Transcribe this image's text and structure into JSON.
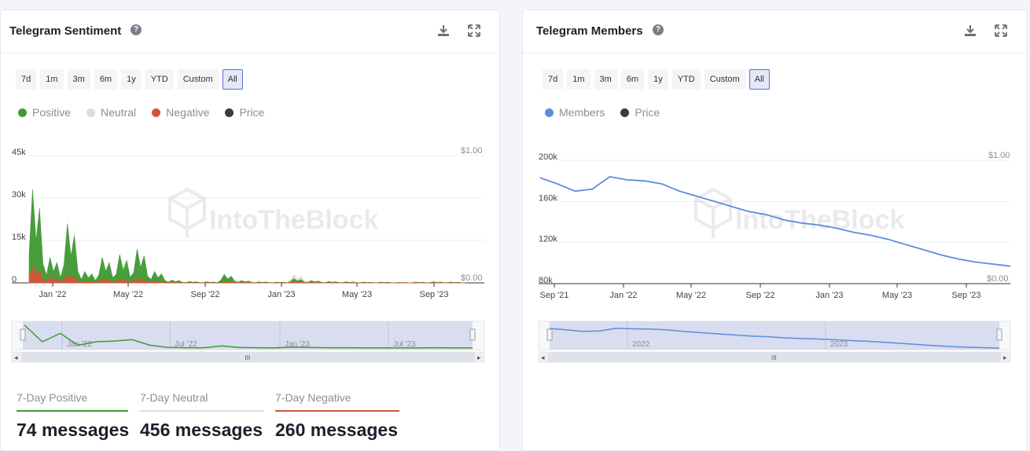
{
  "sentiment": {
    "title": "Telegram Sentiment",
    "ranges": [
      "7d",
      "1m",
      "3m",
      "6m",
      "1y",
      "YTD",
      "Custom",
      "All"
    ],
    "active_range": "All",
    "legend": [
      {
        "label": "Positive",
        "color": "#3f9a32"
      },
      {
        "label": "Neutral",
        "color": "#dcdcdc"
      },
      {
        "label": "Negative",
        "color": "#d4553a"
      },
      {
        "label": "Price",
        "color": "#3b3b3b"
      }
    ],
    "stats": [
      {
        "label": "7-Day Positive",
        "value": "74 messages",
        "color": "#3f9a32"
      },
      {
        "label": "7-Day Neutral",
        "value": "456 messages",
        "color": "#dcdcdc"
      },
      {
        "label": "7-Day Negative",
        "value": "260 messages",
        "color": "#d4553a"
      }
    ],
    "watermark": "IntoTheBlock"
  },
  "members": {
    "title": "Telegram Members",
    "ranges": [
      "7d",
      "1m",
      "3m",
      "6m",
      "1y",
      "YTD",
      "Custom",
      "All"
    ],
    "active_range": "All",
    "legend": [
      {
        "label": "Members",
        "color": "#5b8ddc"
      },
      {
        "label": "Price",
        "color": "#3b3b3b"
      }
    ],
    "watermark": "IntoTheBlock"
  },
  "chart_data": [
    {
      "type": "area",
      "title": "Telegram Sentiment",
      "y_ticks": [
        "0",
        "15k",
        "30k",
        "45k"
      ],
      "ylim": [
        0,
        45000
      ],
      "y2_ticks": [
        "$0.00",
        "$1.00"
      ],
      "x_ticks": [
        "Jan '22",
        "May '22",
        "Sep '22",
        "Jan '23",
        "May '23",
        "Sep '23"
      ],
      "navigator_ticks": [
        "Jan '22",
        "Jul '22",
        "Jan '23",
        "Jul '23"
      ],
      "x": [
        "2021-10",
        "2021-11",
        "2021-12",
        "2022-01",
        "2022-02",
        "2022-03",
        "2022-04",
        "2022-05",
        "2022-06",
        "2022-07",
        "2022-08",
        "2022-09",
        "2022-10",
        "2022-11",
        "2022-12",
        "2023-01",
        "2023-02",
        "2023-03",
        "2023-04",
        "2023-05",
        "2023-06",
        "2023-07",
        "2023-08",
        "2023-09",
        "2023-10",
        "2023-11"
      ],
      "series": [
        {
          "name": "Positive",
          "color": "#3f9a32",
          "values": [
            33000,
            9000,
            21000,
            4000,
            9000,
            10000,
            12000,
            4000,
            1000,
            500,
            400,
            3000,
            800,
            400,
            300,
            1500,
            800,
            500,
            400,
            300,
            300,
            200,
            300,
            400,
            300,
            200
          ]
        },
        {
          "name": "Neutral",
          "color": "#dcdcdc",
          "values": [
            30000,
            6000,
            13000,
            3000,
            5000,
            5000,
            6000,
            2000,
            600,
            300,
            300,
            1800,
            500,
            300,
            200,
            3000,
            500,
            300,
            300,
            200,
            200,
            200,
            200,
            300,
            200,
            200
          ]
        },
        {
          "name": "Negative",
          "color": "#d4553a",
          "values": [
            6000,
            2000,
            3000,
            800,
            1500,
            1500,
            1800,
            700,
            200,
            100,
            100,
            500,
            200,
            100,
            100,
            400,
            200,
            100,
            100,
            100,
            100,
            100,
            100,
            100,
            100,
            100
          ]
        }
      ],
      "grid": true,
      "legend_position": "top-left"
    },
    {
      "type": "line",
      "title": "Telegram Members",
      "y_ticks": [
        "80k",
        "120k",
        "160k",
        "200k"
      ],
      "ylim": [
        80000,
        200000
      ],
      "y2_ticks": [
        "$0.00",
        "$1.00"
      ],
      "x_ticks": [
        "Sep '21",
        "Jan '22",
        "May '22",
        "Sep '22",
        "Jan '23",
        "May '23",
        "Sep '23"
      ],
      "navigator_ticks": [
        "2022",
        "2023"
      ],
      "x": [
        "2021-08",
        "2021-09",
        "2021-10",
        "2021-11",
        "2021-12",
        "2022-01",
        "2022-02",
        "2022-03",
        "2022-04",
        "2022-05",
        "2022-06",
        "2022-07",
        "2022-08",
        "2022-09",
        "2022-10",
        "2022-11",
        "2022-12",
        "2023-01",
        "2023-02",
        "2023-03",
        "2023-04",
        "2023-05",
        "2023-06",
        "2023-07",
        "2023-08",
        "2023-09",
        "2023-10",
        "2023-11"
      ],
      "series": [
        {
          "name": "Members",
          "color": "#5b8ddc",
          "values": [
            183000,
            177000,
            170000,
            172000,
            184000,
            181000,
            180000,
            177000,
            170000,
            165000,
            160000,
            155000,
            150000,
            147000,
            142000,
            139000,
            137000,
            134000,
            130000,
            127000,
            123000,
            118000,
            113000,
            108000,
            104000,
            101000,
            99000,
            97000
          ]
        }
      ],
      "grid": true,
      "legend_position": "top-left"
    }
  ]
}
